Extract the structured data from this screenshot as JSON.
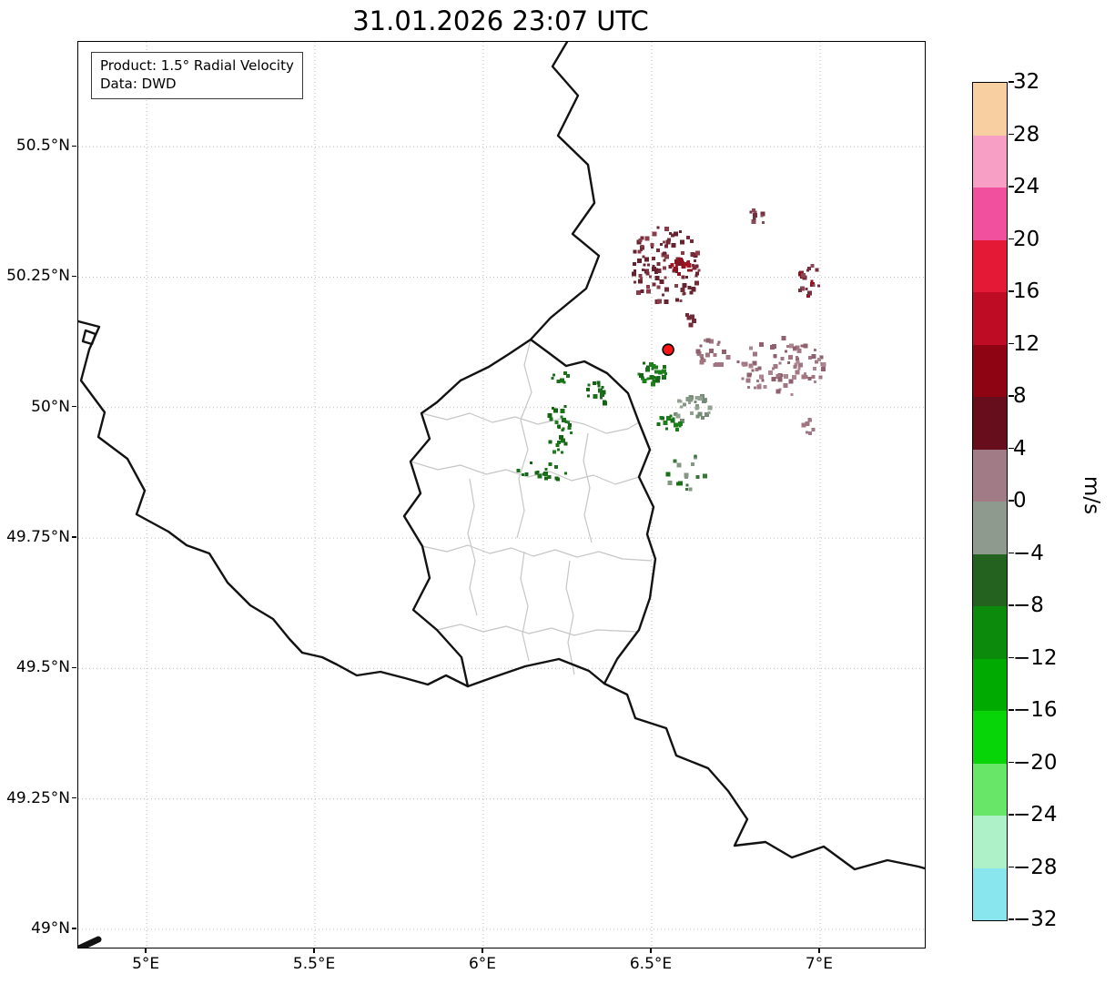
{
  "title": "31.01.2026 23:07 UTC",
  "info_box": {
    "product_line": "Product: 1.5° Radial Velocity",
    "data_line": "Data: DWD"
  },
  "axes": {
    "xlim": [
      4.797,
      7.311
    ],
    "ylim": [
      48.965,
      50.701
    ],
    "grid": true,
    "x_ticks": [
      {
        "value": 5.0,
        "label": "5°E"
      },
      {
        "value": 5.5,
        "label": "5.5°E"
      },
      {
        "value": 6.0,
        "label": "6°E"
      },
      {
        "value": 6.5,
        "label": "6.5°E"
      },
      {
        "value": 7.0,
        "label": "7°E"
      }
    ],
    "y_ticks": [
      {
        "value": 50.5,
        "label": "50.5°N"
      },
      {
        "value": 50.25,
        "label": "50.25°N"
      },
      {
        "value": 50.0,
        "label": "50°N"
      },
      {
        "value": 49.75,
        "label": "49.75°N"
      },
      {
        "value": 49.5,
        "label": "49.5°N"
      },
      {
        "value": 49.25,
        "label": "49.25°N"
      },
      {
        "value": 49.0,
        "label": "49°N"
      }
    ]
  },
  "colorbar": {
    "unit": "m/s",
    "vmin": -32,
    "vmax": 32,
    "tick_labels": [
      "32",
      "28",
      "24",
      "20",
      "16",
      "12",
      "8",
      "4",
      "0",
      "−4",
      "−8",
      "−12",
      "−16",
      "−20",
      "−24",
      "−28",
      "−32"
    ],
    "segment_colors_top_to_bottom": [
      "#f8cfa0",
      "#f79fc5",
      "#f0509e",
      "#e41935",
      "#bd0c23",
      "#8e0413",
      "#660e1b",
      "#a17b85",
      "#8e9a8e",
      "#23621f",
      "#0b8a0b",
      "#00aa00",
      "#07d507",
      "#67e667",
      "#aef0c8",
      "#89e6ef"
    ]
  },
  "colors": {
    "radar_marker": "#ff1414",
    "country_border": "#121212",
    "canton_border": "#c6c6c6",
    "gridline": "#bdbdbd"
  },
  "chart_data": {
    "type": "heatmap",
    "subtype": "radar-radial-velocity-map",
    "title": "31.01.2026 23:07 UTC",
    "product": "1.5° Radial Velocity",
    "data_source": "DWD",
    "units": "m/s",
    "value_range": [
      -32,
      32
    ],
    "x_axis": {
      "quantity": "longitude",
      "range": [
        4.797,
        7.311
      ],
      "tick_labels": [
        "5°E",
        "5.5°E",
        "6°E",
        "6.5°E",
        "7°E"
      ]
    },
    "y_axis": {
      "quantity": "latitude",
      "range": [
        48.965,
        50.701
      ],
      "tick_labels": [
        "50.5°N",
        "50.25°N",
        "50°N",
        "49.75°N",
        "49.5°N",
        "49.25°N",
        "49°N"
      ]
    },
    "legend_position": "right-colorbar",
    "grid": "dotted",
    "radar_site": {
      "lon": 6.549,
      "lat": 50.111
    },
    "echo_clusters": [
      {
        "name": "maroon-cluster-north",
        "sign": "positive",
        "lon": 6.535,
        "lat": 50.273,
        "rx_deg": 0.103,
        "ry_deg": 0.079,
        "colors": [
          "#6e1f2e",
          "#82333f",
          "#5e1724"
        ],
        "cells": 110
      },
      {
        "name": "dark-red-core-north",
        "sign": "positive",
        "lon": 6.584,
        "lat": 50.272,
        "rx_deg": 0.032,
        "ry_deg": 0.016,
        "colors": [
          "#8e0413",
          "#a00715"
        ],
        "cells": 16
      },
      {
        "name": "maroon-speck-ne",
        "sign": "positive",
        "lon": 6.814,
        "lat": 50.371,
        "rx_deg": 0.026,
        "ry_deg": 0.016,
        "colors": [
          "#6e2433",
          "#84404c"
        ],
        "cells": 10
      },
      {
        "name": "maroon-cluster-east",
        "sign": "positive",
        "lon": 6.959,
        "lat": 50.247,
        "rx_deg": 0.036,
        "ry_deg": 0.032,
        "colors": [
          "#6e2433",
          "#8e0413",
          "#84404c"
        ],
        "cells": 18
      },
      {
        "name": "mauve-cluster-east",
        "sign": "weak-positive",
        "lon": 6.878,
        "lat": 50.081,
        "rx_deg": 0.13,
        "ry_deg": 0.058,
        "colors": [
          "#9c6f7c",
          "#8a5866",
          "#a87f8b"
        ],
        "cells": 85
      },
      {
        "name": "mauve-cluster-center",
        "sign": "weak-positive",
        "lon": 6.678,
        "lat": 50.108,
        "rx_deg": 0.05,
        "ry_deg": 0.027,
        "colors": [
          "#9c6f7c",
          "#8a5866"
        ],
        "cells": 22
      },
      {
        "name": "mauve-speck-se",
        "sign": "weak-positive",
        "lon": 6.959,
        "lat": 49.968,
        "rx_deg": 0.022,
        "ry_deg": 0.015,
        "colors": [
          "#9c6f7c"
        ],
        "cells": 8
      },
      {
        "name": "gray-green-center",
        "sign": "weak-negative",
        "lon": 6.616,
        "lat": 49.998,
        "rx_deg": 0.055,
        "ry_deg": 0.032,
        "colors": [
          "#7e927e",
          "#6f856f",
          "#8d9d8d"
        ],
        "cells": 30
      },
      {
        "name": "maroon-speck-near-site",
        "sign": "positive",
        "lon": 6.605,
        "lat": 50.17,
        "rx_deg": 0.02,
        "ry_deg": 0.012,
        "colors": [
          "#6e1f2e"
        ],
        "cells": 6
      },
      {
        "name": "green-cluster-near-site",
        "sign": "negative",
        "lon": 6.5,
        "lat": 50.073,
        "rx_deg": 0.044,
        "ry_deg": 0.024,
        "colors": [
          "#0d6b0d",
          "#0a5c0a",
          "#117a11"
        ],
        "cells": 26
      },
      {
        "name": "green-cluster-west1",
        "sign": "negative",
        "lon": 6.33,
        "lat": 50.029,
        "rx_deg": 0.033,
        "ry_deg": 0.025,
        "colors": [
          "#0d6b0d",
          "#0a5c0a"
        ],
        "cells": 15
      },
      {
        "name": "green-speck-west",
        "sign": "negative",
        "lon": 6.222,
        "lat": 50.06,
        "rx_deg": 0.027,
        "ry_deg": 0.013,
        "colors": [
          "#0d6b0d"
        ],
        "cells": 8
      },
      {
        "name": "green-cluster-west2",
        "sign": "negative",
        "lon": 6.222,
        "lat": 49.959,
        "rx_deg": 0.039,
        "ry_deg": 0.053,
        "colors": [
          "#0d6b0d",
          "#0a5c0a",
          "#117a11"
        ],
        "cells": 28
      },
      {
        "name": "green-streak-southwest",
        "sign": "negative",
        "lon": 6.17,
        "lat": 49.881,
        "rx_deg": 0.077,
        "ry_deg": 0.02,
        "colors": [
          "#0d6b0d",
          "#0a5c0a"
        ],
        "cells": 18
      },
      {
        "name": "green-cluster-south-of-site",
        "sign": "negative",
        "lon": 6.549,
        "lat": 49.977,
        "rx_deg": 0.036,
        "ry_deg": 0.02,
        "colors": [
          "#0d6b0d",
          "#117a11"
        ],
        "cells": 13
      },
      {
        "name": "green-specks-south",
        "sign": "negative",
        "lon": 6.595,
        "lat": 49.881,
        "rx_deg": 0.06,
        "ry_deg": 0.036,
        "colors": [
          "#0d6b0d",
          "#7e927e",
          "#2e6e2e"
        ],
        "cells": 16
      }
    ]
  }
}
